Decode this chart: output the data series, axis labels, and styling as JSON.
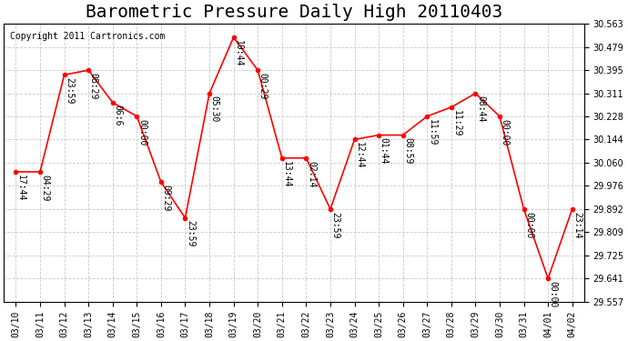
{
  "title": "Barometric Pressure Daily High 20110403",
  "copyright": "Copyright 2011 Cartronics.com",
  "x_labels": [
    "03/10",
    "03/11",
    "03/12",
    "03/13",
    "03/14",
    "03/15",
    "03/16",
    "03/17",
    "03/18",
    "03/19",
    "03/20",
    "03/21",
    "03/22",
    "03/23",
    "03/24",
    "03/25",
    "03/26",
    "03/27",
    "03/28",
    "03/29",
    "03/30",
    "03/31",
    "04/01",
    "04/02"
  ],
  "y_values": [
    30.027,
    30.027,
    30.378,
    30.395,
    30.278,
    30.228,
    29.99,
    29.86,
    30.311,
    30.514,
    30.395,
    30.077,
    30.077,
    29.892,
    30.144,
    30.16,
    30.16,
    30.228,
    30.261,
    30.311,
    30.228,
    29.892,
    29.641,
    29.892
  ],
  "point_labels": [
    "17:44",
    "04:29",
    "23:59",
    "08:29",
    "06:6",
    "00:00",
    "09:29",
    "23:59",
    "05:30",
    "10:44",
    "00:29",
    "13:44",
    "02:14",
    "23:59",
    "12:44",
    "01:44",
    "08:59",
    "11:59",
    "11:29",
    "08:44",
    "00:00",
    "00:00",
    "00:00",
    "23:14"
  ],
  "line_color": "#FF0000",
  "marker_color": "#FF0000",
  "background_color": "#FFFFFF",
  "grid_color": "#C8C8C8",
  "title_color": "#000000",
  "ylabel_right": true,
  "ylim": [
    29.557,
    30.563
  ],
  "yticks": [
    29.557,
    29.641,
    29.725,
    29.809,
    29.892,
    29.976,
    30.06,
    30.144,
    30.228,
    30.311,
    30.395,
    30.479,
    30.563
  ],
  "title_fontsize": 14,
  "label_fontsize": 7,
  "copyright_fontsize": 7
}
